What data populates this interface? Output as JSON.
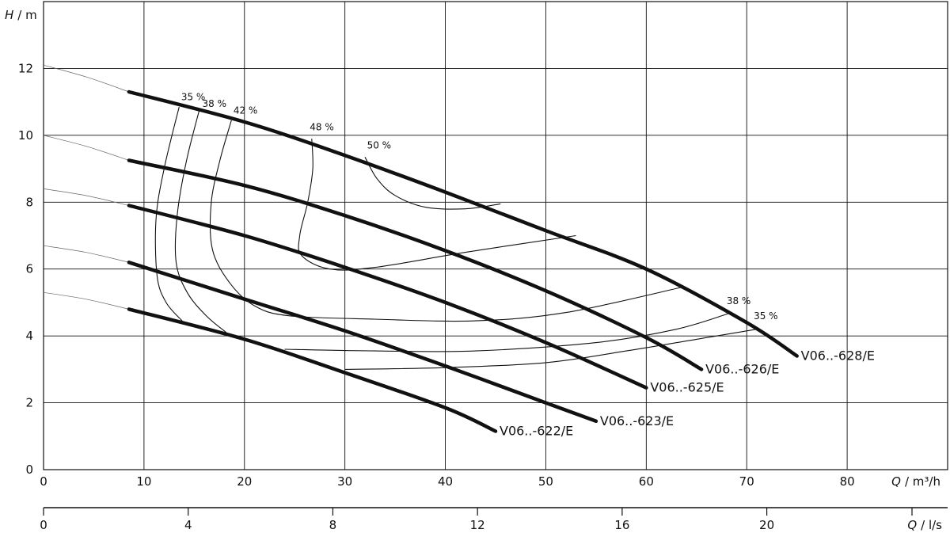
{
  "chart_data": {
    "type": "line",
    "y_label": {
      "symbol": "H",
      "unit": "/ m"
    },
    "x_label": {
      "symbol": "Q",
      "unit": "/ m³/h"
    },
    "x2_label": {
      "symbol": "Q",
      "unit": "/ l/s"
    },
    "xlim": [
      0,
      87
    ],
    "ylim": [
      0,
      14
    ],
    "x_ticks": [
      0,
      10,
      20,
      30,
      40,
      50,
      60,
      70,
      80
    ],
    "y_ticks": [
      0,
      2,
      4,
      6,
      8,
      10,
      12
    ],
    "x2_ticks": [
      0,
      4,
      8,
      12,
      16,
      20
    ],
    "grid": true,
    "series": [
      {
        "name": "V06..-628/E",
        "points": [
          [
            8.5,
            11.3
          ],
          [
            20,
            10.4
          ],
          [
            30,
            9.4
          ],
          [
            40,
            8.3
          ],
          [
            50,
            7.15
          ],
          [
            60,
            6.0
          ],
          [
            70,
            4.4
          ],
          [
            75,
            3.4
          ]
        ]
      },
      {
        "name": "V06..-626/E",
        "points": [
          [
            8.5,
            9.25
          ],
          [
            20,
            8.5
          ],
          [
            30,
            7.6
          ],
          [
            40,
            6.55
          ],
          [
            50,
            5.35
          ],
          [
            60,
            3.95
          ],
          [
            65.5,
            3.0
          ]
        ]
      },
      {
        "name": "V06..-625/E",
        "points": [
          [
            8.5,
            7.9
          ],
          [
            20,
            7.0
          ],
          [
            30,
            6.05
          ],
          [
            40,
            5.0
          ],
          [
            50,
            3.8
          ],
          [
            60,
            2.45
          ]
        ]
      },
      {
        "name": "V06..-623/E",
        "points": [
          [
            8.5,
            6.2
          ],
          [
            20,
            5.1
          ],
          [
            30,
            4.15
          ],
          [
            40,
            3.1
          ],
          [
            50,
            2.0
          ],
          [
            55,
            1.45
          ]
        ]
      },
      {
        "name": "V06..-622/E",
        "points": [
          [
            8.5,
            4.8
          ],
          [
            20,
            3.9
          ],
          [
            30,
            2.9
          ],
          [
            40,
            1.85
          ],
          [
            45,
            1.15
          ]
        ]
      }
    ],
    "efficiency_labels": [
      "35 %",
      "38 %",
      "42 %",
      "48 %",
      "50 %",
      "38 %",
      "35 %"
    ]
  }
}
